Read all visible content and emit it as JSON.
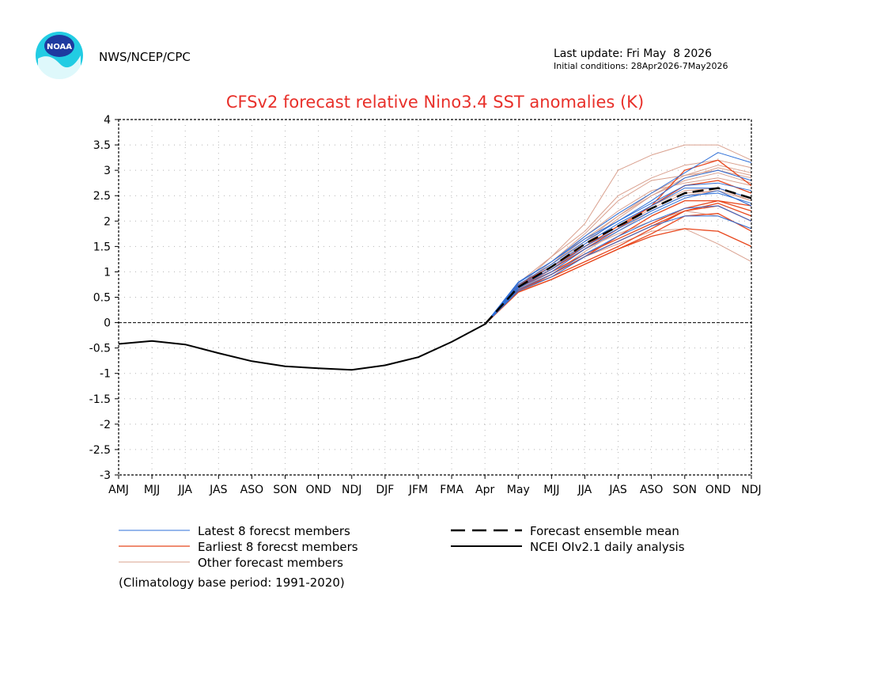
{
  "header": {
    "agency": "NWS/NCEP/CPC",
    "logo_text": "NOAA",
    "last_update": "Last update: Fri May  8 2026",
    "initial_conditions": "Initial conditions: 28Apr2026-7May2026"
  },
  "colors": {
    "title": "#e8302a",
    "latest": "#2e6fd8",
    "earliest": "#e8481e",
    "other": "#d9a08e",
    "mean": "#000000",
    "observed": "#000000",
    "grid": "#b4b4b4",
    "logo_outer": "#22cce3",
    "logo_inner": "#1e3aa0"
  },
  "legend": {
    "latest_label": "Latest 8 forecst members",
    "earliest_label": "Earliest 8 forecst members",
    "other_label": "Other forecast members",
    "mean_label": "Forecast ensemble mean",
    "observed_label": "NCEI OIv2.1 daily analysis",
    "climatology": "(Climatology base period: 1991-2020)"
  },
  "chart_data": {
    "type": "line",
    "title": "CFSv2 forecast relative Nino3.4 SST anomalies (K)",
    "xlabel": "",
    "ylabel": "",
    "categories": [
      "AMJ",
      "MJJ",
      "JJA",
      "JAS",
      "ASO",
      "SON",
      "OND",
      "NDJ",
      "DJF",
      "JFM",
      "FMA",
      "Apr",
      "May",
      "MJJ",
      "JJA",
      "JAS",
      "ASO",
      "SON",
      "OND",
      "NDJ"
    ],
    "ylim": [
      -3,
      4
    ],
    "yticks": [
      4,
      3.5,
      3,
      2.5,
      2,
      1.5,
      1,
      0.5,
      0,
      -0.5,
      -1,
      -1.5,
      -2,
      -2.5,
      -3
    ],
    "ytick_labels": [
      "4",
      "3.5",
      "3",
      "2.5",
      "2",
      "1.5",
      "1",
      "0.5",
      "0",
      "-0.5",
      "-1",
      "-1.5",
      "-2",
      "-2.5",
      "-3"
    ],
    "grid": true,
    "legend_position": "bottom",
    "observed": {
      "x_index": [
        0,
        1,
        2,
        3,
        4,
        5,
        6,
        7,
        8,
        9,
        10,
        11
      ],
      "values": [
        -0.42,
        -0.36,
        -0.43,
        -0.6,
        -0.76,
        -0.86,
        -0.9,
        -0.93,
        -0.84,
        -0.68,
        -0.38,
        -0.03
      ]
    },
    "ensemble_mean": {
      "x_index": [
        11,
        12,
        13,
        14,
        15,
        16,
        17,
        18,
        19
      ],
      "values": [
        -0.03,
        0.7,
        1.1,
        1.55,
        1.9,
        2.25,
        2.55,
        2.65,
        2.45
      ]
    },
    "member_x_index": [
      11,
      12,
      13,
      14,
      15,
      16,
      17,
      18,
      19
    ],
    "latest_members": [
      [
        -0.03,
        0.8,
        1.2,
        1.7,
        2.15,
        2.55,
        2.95,
        3.35,
        3.15
      ],
      [
        -0.03,
        0.75,
        1.15,
        1.6,
        2.0,
        2.35,
        2.7,
        2.75,
        2.6
      ],
      [
        -0.03,
        0.72,
        1.1,
        1.55,
        1.95,
        2.3,
        2.65,
        2.65,
        2.45
      ],
      [
        -0.03,
        0.7,
        1.05,
        1.5,
        1.85,
        2.2,
        2.5,
        2.55,
        2.35
      ],
      [
        -0.03,
        0.68,
        1.0,
        1.45,
        1.8,
        2.15,
        2.45,
        2.6,
        2.3
      ],
      [
        -0.03,
        0.65,
        0.95,
        1.35,
        1.7,
        2.0,
        2.25,
        2.3,
        2.0
      ],
      [
        -0.03,
        0.62,
        0.9,
        1.3,
        1.6,
        1.9,
        2.1,
        2.1,
        1.85
      ],
      [
        -0.03,
        0.78,
        1.2,
        1.65,
        2.0,
        2.4,
        2.85,
        3.0,
        2.8
      ]
    ],
    "earliest_members": [
      [
        -0.03,
        0.6,
        0.85,
        1.15,
        1.45,
        1.75,
        2.1,
        2.15,
        1.8
      ],
      [
        -0.03,
        0.65,
        0.9,
        1.2,
        1.5,
        1.85,
        2.2,
        2.35,
        2.1
      ],
      [
        -0.03,
        0.7,
        1.0,
        1.35,
        1.65,
        1.95,
        2.25,
        2.4,
        2.2
      ],
      [
        -0.03,
        0.62,
        0.95,
        1.3,
        1.6,
        1.9,
        2.2,
        2.3,
        2.0
      ],
      [
        -0.03,
        0.75,
        1.1,
        1.5,
        1.9,
        2.3,
        2.7,
        2.8,
        2.55
      ],
      [
        -0.03,
        0.72,
        1.05,
        1.45,
        1.85,
        2.3,
        3.0,
        3.2,
        2.7
      ],
      [
        -0.03,
        0.6,
        0.85,
        1.15,
        1.45,
        1.7,
        1.85,
        1.8,
        1.5
      ],
      [
        -0.03,
        0.65,
        0.95,
        1.3,
        1.7,
        2.1,
        2.4,
        2.4,
        2.3
      ]
    ],
    "other_members": [
      [
        -0.03,
        0.7,
        1.3,
        1.95,
        3.0,
        3.3,
        3.5,
        3.5,
        3.2
      ],
      [
        -0.03,
        0.78,
        1.3,
        1.8,
        2.5,
        2.85,
        3.1,
        3.2,
        3.05
      ],
      [
        -0.03,
        0.7,
        1.2,
        1.75,
        2.4,
        2.8,
        2.9,
        3.0,
        2.85
      ],
      [
        -0.03,
        0.72,
        1.15,
        1.7,
        2.2,
        2.6,
        2.75,
        2.85,
        2.7
      ],
      [
        -0.03,
        0.65,
        1.0,
        1.45,
        1.75,
        2.0,
        2.2,
        2.1,
        1.85
      ],
      [
        -0.03,
        0.6,
        0.9,
        1.3,
        1.55,
        1.8,
        1.85,
        1.55,
        1.2
      ],
      [
        -0.03,
        0.68,
        1.05,
        1.5,
        1.9,
        2.3,
        2.6,
        2.65,
        2.4
      ],
      [
        -0.03,
        0.66,
        1.05,
        1.55,
        2.05,
        2.5,
        2.85,
        3.05,
        2.9
      ],
      [
        -0.03,
        0.7,
        1.1,
        1.6,
        2.1,
        2.55,
        2.9,
        3.1,
        2.95
      ],
      [
        -0.03,
        0.62,
        0.95,
        1.4,
        1.8,
        2.2,
        2.5,
        2.6,
        2.4
      ],
      [
        -0.03,
        0.74,
        1.15,
        1.65,
        2.1,
        2.5,
        2.8,
        2.95,
        2.75
      ],
      [
        -0.03,
        0.64,
        1.0,
        1.45,
        1.85,
        2.25,
        2.55,
        2.6,
        2.3
      ]
    ]
  }
}
